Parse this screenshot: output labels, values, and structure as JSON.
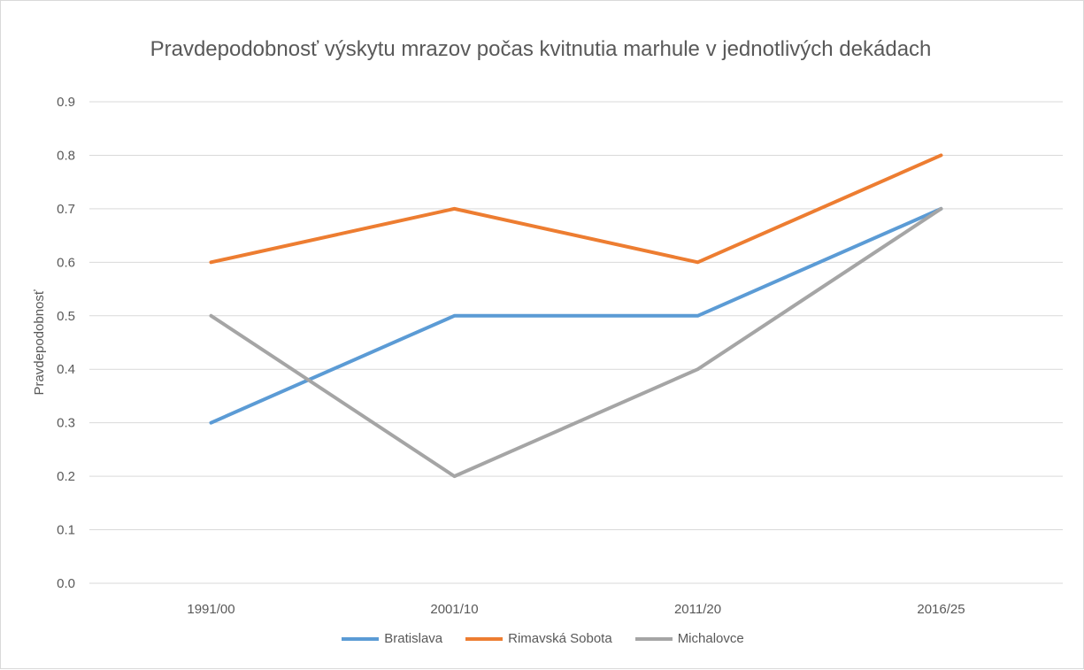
{
  "chart_data": {
    "type": "line",
    "title": "Pravdepodobnosť výskytu mrazov počas kvitnutia marhule v jednotlivých dekádach",
    "xlabel": "",
    "ylabel": "Pravdepodobnosť",
    "categories": [
      "1991/00",
      "2001/10",
      "2011/20",
      "2016/25"
    ],
    "ylim": [
      0,
      0.9
    ],
    "yticks": [
      "0.0",
      "0.1",
      "0.2",
      "0.3",
      "0.4",
      "0.5",
      "0.6",
      "0.7",
      "0.8",
      "0.9"
    ],
    "grid": true,
    "legend_position": "bottom",
    "series": [
      {
        "name": "Bratislava",
        "color": "#5b9bd5",
        "values": [
          0.3,
          0.5,
          0.5,
          0.7
        ]
      },
      {
        "name": "Rimavská Sobota",
        "color": "#ed7d31",
        "values": [
          0.6,
          0.7,
          0.6,
          0.8
        ]
      },
      {
        "name": "Michalovce",
        "color": "#a5a5a5",
        "values": [
          0.5,
          0.2,
          0.4,
          0.7
        ]
      }
    ]
  }
}
